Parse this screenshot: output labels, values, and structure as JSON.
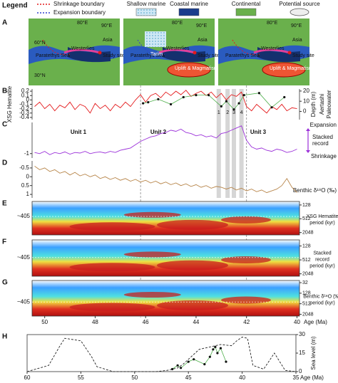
{
  "legend": {
    "title": "Legend",
    "items": [
      "Shrinkage boundary",
      "Expansion boundary",
      "Shallow marine",
      "Coastal marine",
      "Continental",
      "Potential source"
    ]
  },
  "maps": {
    "panel": "A",
    "panels": [
      {
        "lat1": "60°N",
        "lat2": "30°N",
        "lon1": "80°E",
        "lon2": "90°E",
        "sea": "Paratethys Sea",
        "wind": "Westerlies",
        "continent": "Asia",
        "site": "Study site"
      },
      {
        "lon1": "80°E",
        "lon2": "90°E",
        "sea": "Paratethys Sea",
        "wind": "Westerlies",
        "continent": "Asia",
        "site": "Study site",
        "basin": "Tarim",
        "uplift": "Uplift & Magmatism"
      },
      {
        "lon1": "80°E",
        "lon2": "90°E",
        "sea": "Paratethys Sea",
        "wind": "Westerlies",
        "continent": "Asia",
        "site": "Study site",
        "uplift": "Uplift & Magmatism"
      }
    ]
  },
  "bands": [
    {
      "label": "1",
      "x": 43.1
    },
    {
      "label": "2",
      "x": 42.75
    },
    {
      "label": "3",
      "x": 42.5
    },
    {
      "label": "4",
      "x": 42.2
    }
  ],
  "events": [
    46.2,
    42.0
  ],
  "chart_data": [
    {
      "type": "line",
      "panel": "B",
      "ylabel": "XSG Hematite",
      "y2label": "Depth (m)",
      "y2title": [
        "Aertashi",
        "Paleowater"
      ],
      "xlim": [
        50.5,
        39.9
      ],
      "ylim": [
        -0.45,
        0.25
      ],
      "yticks": [
        0.2,
        0.1,
        0,
        -0.1,
        -0.2,
        -0.3,
        -0.4
      ],
      "y2lim": [
        -8,
        22
      ],
      "y2ticks": [
        0,
        10,
        20
      ],
      "series": [
        {
          "name": "XSG Hematite",
          "color": "#e41a1c",
          "x": [
            50.4,
            50.2,
            50.0,
            49.8,
            49.6,
            49.4,
            49.2,
            49.0,
            48.8,
            48.6,
            48.4,
            48.2,
            48.0,
            47.8,
            47.6,
            47.4,
            47.2,
            47.0,
            46.8,
            46.6,
            46.4,
            46.2,
            46.0,
            45.8,
            45.6,
            45.4,
            45.2,
            45.0,
            44.8,
            44.6,
            44.4,
            44.2,
            44.0,
            43.8,
            43.6,
            43.4,
            43.2,
            43.0,
            42.8,
            42.6,
            42.4,
            42.2,
            42.0,
            41.8,
            41.6,
            41.4,
            41.2,
            41.0,
            40.8,
            40.6,
            40.4,
            40.2,
            40.0
          ],
          "values": [
            -0.15,
            -0.05,
            -0.2,
            -0.1,
            -0.25,
            -0.12,
            -0.18,
            -0.05,
            -0.22,
            -0.1,
            -0.15,
            -0.3,
            -0.08,
            -0.2,
            -0.12,
            -0.25,
            -0.1,
            -0.18,
            -0.05,
            -0.15,
            0.0,
            0.12,
            -0.05,
            0.1,
            0.15,
            0.05,
            0.18,
            0.1,
            0.2,
            0.12,
            0.22,
            0.08,
            0.15,
            0.2,
            0.1,
            0.18,
            0.05,
            0.15,
            0.0,
            0.12,
            0.08,
            0.18,
            -0.15,
            -0.25,
            -0.1,
            -0.2,
            -0.3,
            -0.15,
            -0.22,
            -0.1,
            -0.25,
            -0.18,
            -0.2
          ]
        },
        {
          "name": "Aertashi Paleowater",
          "color": "#4daf4a",
          "axis": "y2",
          "marker": true,
          "x": [
            46.1,
            45.9,
            45.5,
            45.0,
            44.5,
            44.0,
            43.5,
            43.0,
            42.8,
            42.5,
            42.3,
            42.1,
            41.5,
            41.0,
            40.5
          ],
          "values": [
            8,
            9,
            12,
            7,
            14,
            16,
            16,
            5,
            10,
            2,
            8,
            16,
            18,
            4,
            14
          ]
        }
      ]
    },
    {
      "type": "line",
      "panel": "C",
      "right_labels": [
        "Expansion",
        "Shrinkage"
      ],
      "right_title": [
        "Stacked",
        "record"
      ],
      "units": [
        "Unit 1",
        "Unit 2",
        "Unit 3"
      ],
      "xlim": [
        50.5,
        39.9
      ],
      "ylim": [
        -1.4,
        1.8
      ],
      "yticks": [
        -1
      ],
      "series": [
        {
          "name": "Stacked record",
          "color": "#9b30d9",
          "x": [
            50.4,
            50.2,
            50.0,
            49.8,
            49.6,
            49.4,
            49.2,
            49.0,
            48.8,
            48.6,
            48.4,
            48.2,
            48.0,
            47.8,
            47.6,
            47.4,
            47.2,
            47.0,
            46.8,
            46.6,
            46.4,
            46.2,
            46.0,
            45.8,
            45.6,
            45.4,
            45.2,
            45.0,
            44.8,
            44.6,
            44.4,
            44.2,
            44.0,
            43.8,
            43.6,
            43.4,
            43.2,
            43.0,
            42.8,
            42.6,
            42.4,
            42.2,
            42.0,
            41.8,
            41.6,
            41.4,
            41.2,
            41.0,
            40.8,
            40.6,
            40.4,
            40.2,
            40.0
          ],
          "values": [
            -0.9,
            -1.0,
            -0.8,
            -1.1,
            -0.9,
            -1.0,
            -0.85,
            -1.05,
            -0.9,
            -0.95,
            -0.8,
            -1.0,
            -0.9,
            -0.85,
            -0.95,
            -0.8,
            -0.9,
            -0.7,
            -0.6,
            -0.5,
            -0.2,
            0.1,
            0.3,
            0.5,
            0.6,
            0.8,
            0.9,
            1.1,
            1.0,
            1.2,
            0.9,
            0.8,
            0.6,
            0.7,
            0.5,
            0.6,
            0.4,
            0.8,
            0.9,
            1.1,
            1.3,
            1.5,
            0.2,
            -0.4,
            -0.6,
            -0.5,
            -0.7,
            -0.8,
            -0.6,
            -0.7,
            -0.9,
            -0.8,
            -0.6
          ]
        }
      ]
    },
    {
      "type": "line",
      "panel": "D",
      "ylabel": "Benthic δ¹⁸O (‰)",
      "xlim": [
        50.5,
        39.9
      ],
      "ylim": [
        1.2,
        -0.9
      ],
      "yticks": [
        -0.5,
        0,
        0.5,
        1
      ],
      "series": [
        {
          "name": "Benthic δ¹⁸O",
          "color": "#b8864b",
          "x": [
            50.4,
            50.2,
            50.0,
            49.8,
            49.6,
            49.4,
            49.2,
            49.0,
            48.8,
            48.6,
            48.4,
            48.2,
            48.0,
            47.8,
            47.6,
            47.4,
            47.2,
            47.0,
            46.8,
            46.6,
            46.4,
            46.2,
            46.0,
            45.8,
            45.6,
            45.4,
            45.2,
            45.0,
            44.8,
            44.6,
            44.4,
            44.2,
            44.0,
            43.8,
            43.6,
            43.4,
            43.2,
            43.0,
            42.8,
            42.6,
            42.4,
            42.2,
            42.0,
            41.8,
            41.6,
            41.4,
            41.2,
            41.0,
            40.8,
            40.6,
            40.4,
            40.2,
            40.0
          ],
          "values": [
            -0.6,
            -0.4,
            -0.5,
            -0.3,
            -0.4,
            -0.2,
            -0.3,
            -0.1,
            -0.25,
            -0.05,
            -0.15,
            0.0,
            -0.1,
            0.1,
            0.0,
            0.15,
            0.05,
            0.2,
            0.1,
            0.25,
            0.15,
            0.3,
            0.2,
            0.35,
            0.25,
            0.4,
            0.3,
            0.45,
            0.35,
            0.5,
            0.4,
            0.55,
            0.45,
            0.6,
            0.5,
            0.65,
            0.55,
            0.6,
            0.7,
            0.6,
            0.75,
            0.65,
            0.8,
            0.7,
            0.85,
            0.75,
            0.9,
            0.8,
            0.7,
            0.5,
            0.1,
            0.6,
            0.9
          ]
        }
      ]
    },
    {
      "type": "wavelet",
      "panel": "E",
      "title": [
        "XSG Hematite",
        "period (kyr)"
      ],
      "log": true,
      "annotation": {
        "value": 405,
        "label": "~405"
      },
      "xlim": [
        50.5,
        39.9
      ],
      "ylim": [
        2600,
        90
      ],
      "yticks": [
        128,
        512,
        2048
      ]
    },
    {
      "type": "wavelet",
      "panel": "F",
      "title": [
        "Stacked",
        "record",
        "period (kyr)"
      ],
      "log": true,
      "annotation": {
        "value": 405,
        "label": "~405"
      },
      "xlim": [
        50.5,
        39.9
      ],
      "ylim": [
        2600,
        70
      ],
      "yticks": [
        128,
        512,
        2048
      ]
    },
    {
      "type": "wavelet",
      "panel": "G",
      "title": [
        "Benthic δ¹⁸O (‰)",
        "period (kyr)"
      ],
      "log": true,
      "annotation": {
        "value": 405,
        "label": "~405"
      },
      "xlim": [
        50.5,
        39.9
      ],
      "ylim": [
        2600,
        24
      ],
      "yticks": [
        32,
        128,
        512,
        2048
      ],
      "xticks": [
        50,
        48,
        46,
        44,
        42,
        40
      ],
      "xlabel": "Age (Ma)"
    },
    {
      "type": "line",
      "panel": "H",
      "y2label": "Sea level (m)",
      "xlabel": "Age (Ma)",
      "xlim": [
        60,
        35
      ],
      "xticks": [
        60,
        55,
        50,
        45,
        40,
        35
      ],
      "ylim": [
        0,
        30
      ],
      "yticks": [
        0,
        15,
        30
      ],
      "series": [
        {
          "name": "Sea level",
          "color": "#222222",
          "dashed": true,
          "x": [
            60,
            58,
            57,
            56.5,
            55,
            54,
            53.5,
            52,
            50,
            48,
            47,
            46,
            45.5,
            44,
            42,
            41,
            40.5,
            40,
            39.5,
            39,
            38,
            37,
            36,
            35
          ],
          "values": [
            0,
            5,
            20,
            27,
            25,
            12,
            4,
            0,
            0,
            0,
            1,
            3,
            6,
            18,
            22,
            21,
            25,
            28,
            27,
            5,
            2,
            15,
            1,
            0
          ]
        },
        {
          "name": "Paleowater",
          "color": "#4daf4a",
          "marker": true,
          "x": [
            46.5,
            46,
            45.7,
            45,
            44.5,
            43.5,
            43,
            42.7,
            42.5,
            42.3,
            42,
            41.5
          ],
          "values": [
            2,
            5,
            3,
            8,
            10,
            6,
            12,
            18,
            20,
            15,
            19,
            8
          ]
        }
      ]
    }
  ]
}
